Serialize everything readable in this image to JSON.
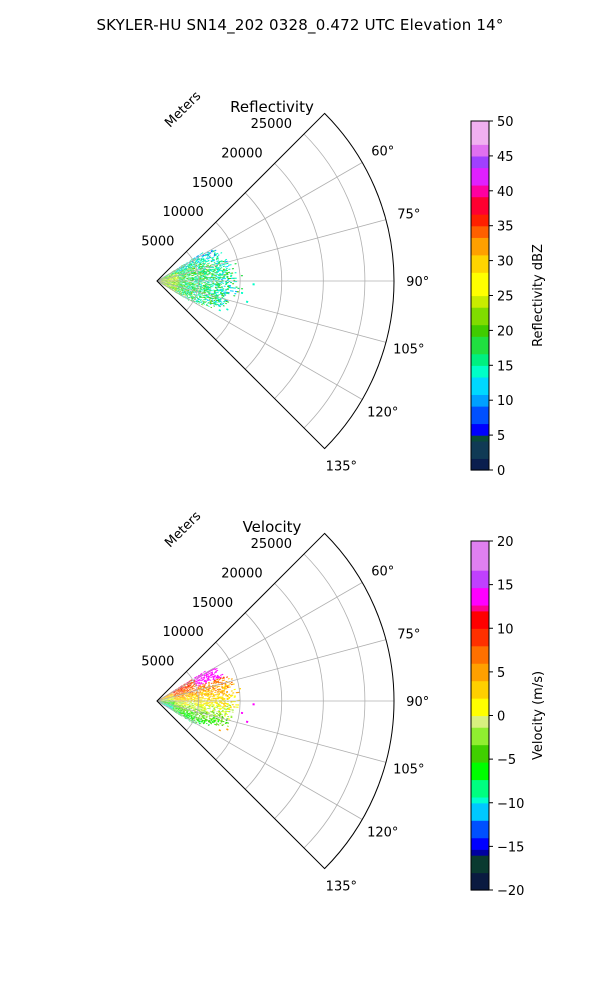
{
  "figure": {
    "title": "SKYLER-HU  SN14_202  0328_0.472 UTC Elevation 14°"
  },
  "chart_data": [
    {
      "type": "heatmap",
      "subtype": "polar-sector-ppi",
      "title": "Reflectivity",
      "radial_axis_label": "Meters",
      "radial_ticks": [
        "5000",
        "10000",
        "15000",
        "20000",
        "25000"
      ],
      "radial_tick_values": [
        5000,
        10000,
        15000,
        20000,
        25000
      ],
      "rmax": 28500,
      "angle_ticks": [
        "60°",
        "75°",
        "90°",
        "105°",
        "120°",
        "135°"
      ],
      "angle_tick_values": [
        60,
        75,
        90,
        105,
        120,
        135
      ],
      "theta_range": [
        45,
        135
      ],
      "grid": true,
      "colorbar": {
        "label": "Reflectivity dBZ",
        "range": [
          0,
          50
        ],
        "ticks": [
          "0",
          "5",
          "10",
          "15",
          "20",
          "25",
          "30",
          "35",
          "40",
          "45",
          "50"
        ],
        "tick_values": [
          0,
          5,
          10,
          15,
          20,
          25,
          30,
          35,
          40,
          45,
          50
        ],
        "colormap": "NWSRef"
      },
      "echo_summary": {
        "extent_m": 9000,
        "azimuth_span": [
          60,
          120
        ],
        "dominant_range_dbz": [
          13,
          25
        ]
      }
    },
    {
      "type": "heatmap",
      "subtype": "polar-sector-ppi",
      "title": "Velocity",
      "radial_axis_label": "Meters",
      "radial_ticks": [
        "5000",
        "10000",
        "15000",
        "20000",
        "25000"
      ],
      "radial_tick_values": [
        5000,
        10000,
        15000,
        20000,
        25000
      ],
      "rmax": 28500,
      "angle_ticks": [
        "60°",
        "75°",
        "90°",
        "105°",
        "120°",
        "135°"
      ],
      "angle_tick_values": [
        60,
        75,
        90,
        105,
        120,
        135
      ],
      "theta_range": [
        45,
        135
      ],
      "grid": true,
      "colorbar": {
        "label": "Velocity (m/s)",
        "range": [
          -20,
          20
        ],
        "ticks": [
          "−20",
          "−15",
          "−10",
          "−5",
          "0",
          "5",
          "10",
          "15",
          "20"
        ],
        "tick_values": [
          -20,
          -15,
          -10,
          -5,
          0,
          5,
          10,
          15,
          20
        ],
        "colormap": "NWSVel"
      },
      "echo_summary": {
        "extent_m": 9000,
        "azimuth_span": [
          60,
          120
        ],
        "dominant_range_ms": [
          -7,
          12
        ]
      }
    }
  ]
}
